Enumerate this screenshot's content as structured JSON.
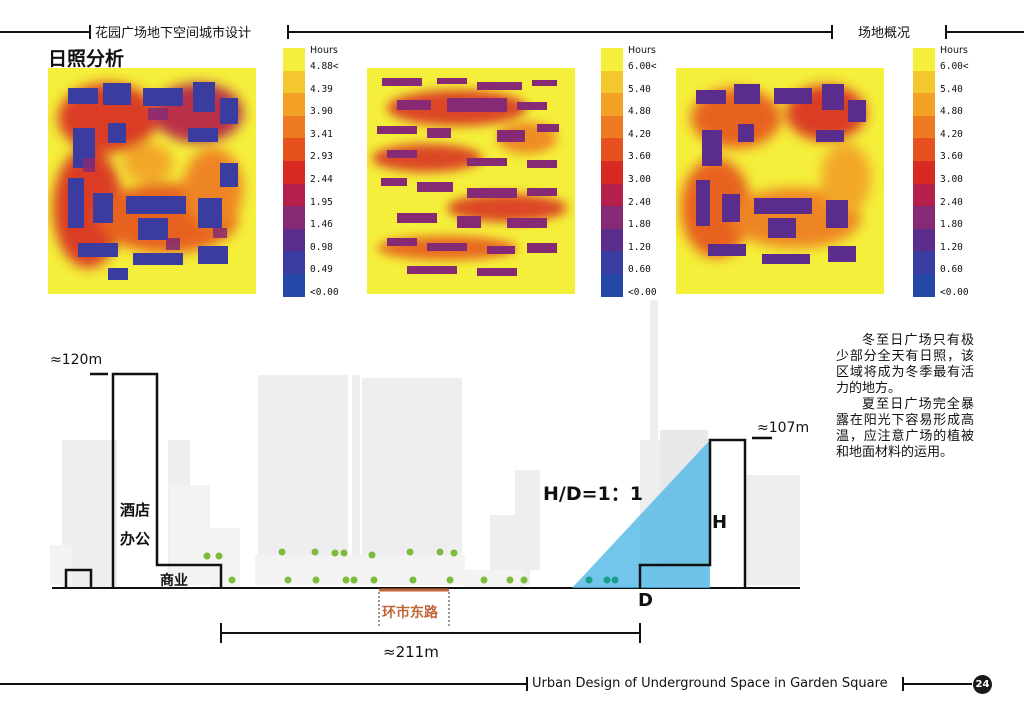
{
  "header": {
    "left_title": "花园广场地下空间城市设计",
    "right_title": "场地概况"
  },
  "section_title": "日照分析",
  "legends": [
    {
      "unit": "Hours",
      "labels": [
        "4.88<",
        "4.39",
        "3.90",
        "3.41",
        "2.93",
        "2.44",
        "1.95",
        "1.46",
        "0.98",
        "0.49",
        "<0.00"
      ]
    },
    {
      "unit": "Hours",
      "labels": [
        "6.00<",
        "5.40",
        "4.80",
        "4.20",
        "3.60",
        "3.00",
        "2.40",
        "1.80",
        "1.20",
        "0.60",
        "<0.00"
      ]
    },
    {
      "unit": "Hours",
      "labels": [
        "6.00<",
        "5.40",
        "4.80",
        "4.20",
        "3.60",
        "3.00",
        "2.40",
        "1.80",
        "1.20",
        "0.60",
        "<0.00"
      ]
    }
  ],
  "legend_colors": [
    "#f4ef3a",
    "#f5c72e",
    "#f3a026",
    "#ee7a22",
    "#e6521e",
    "#d82a20",
    "#b41f4c",
    "#862a75",
    "#5a2c8c",
    "#3a3ca0",
    "#2548a8"
  ],
  "section": {
    "height_left": "≈120m",
    "height_right": "≈107m",
    "distance": "≈211m",
    "ratio": "H/D=1：1",
    "h_label": "H",
    "d_label": "D",
    "road": "环市东路",
    "hotel": "酒店",
    "office": "办公",
    "commerce": "商业",
    "shadow_color": "#4fb8e6"
  },
  "paragraphs": [
    "冬至日广场只有极少部分全天有日照，该区域将成为冬季最有活力的地方。",
    "夏至日广场完全暴露在阳光下容易形成高温，应注意广场的植被和地面材料的运用。"
  ],
  "footer": {
    "text": "Urban Design of Underground Space in Garden Square",
    "page": "24"
  }
}
